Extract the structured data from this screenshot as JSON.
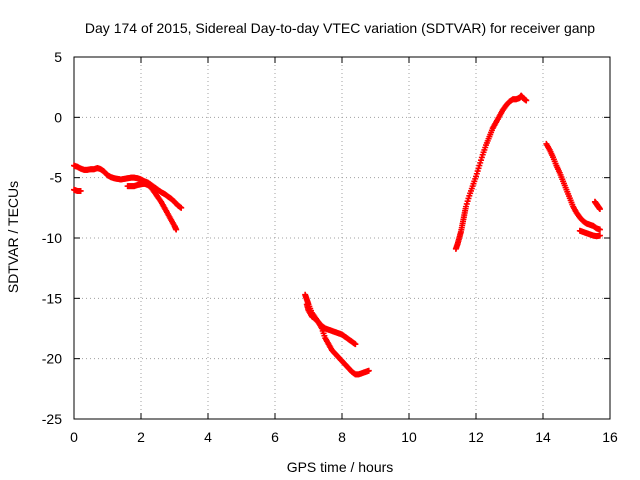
{
  "chart_data": {
    "type": "scatter",
    "title": "Day 174 of 2015, Sidereal Day-to-day VTEC variation (SDTVAR) for receiver ganp",
    "xlabel": "GPS time / hours",
    "ylabel": "SDTVAR / TECUs",
    "xlim": [
      0,
      16
    ],
    "ylim": [
      -25,
      5
    ],
    "xticks": [
      0,
      2,
      4,
      6,
      8,
      10,
      12,
      14,
      16
    ],
    "yticks": [
      -25,
      -20,
      -15,
      -10,
      -5,
      0,
      5
    ],
    "xtick_labels": [
      "0",
      "2",
      "4",
      "6",
      "8",
      "10",
      "12",
      "14",
      "16"
    ],
    "ytick_labels": [
      "-25",
      "-20",
      "-15",
      "-10",
      "-5",
      "0",
      "5"
    ],
    "grid": true,
    "marker": "+",
    "color": "#ff0000",
    "series": [
      {
        "points": [
          [
            0.0,
            -6.0
          ],
          [
            0.1,
            -6.1
          ],
          [
            0.2,
            -6.1
          ]
        ]
      },
      {
        "points": [
          [
            0.0,
            -4.0
          ],
          [
            0.1,
            -4.1
          ],
          [
            0.2,
            -4.25
          ],
          [
            0.3,
            -4.35
          ],
          [
            0.4,
            -4.35
          ],
          [
            0.5,
            -4.3
          ],
          [
            0.6,
            -4.3
          ],
          [
            0.7,
            -4.2
          ],
          [
            0.8,
            -4.3
          ],
          [
            0.9,
            -4.5
          ],
          [
            1.0,
            -4.8
          ],
          [
            1.1,
            -4.95
          ],
          [
            1.2,
            -5.05
          ],
          [
            1.3,
            -5.1
          ],
          [
            1.4,
            -5.15
          ],
          [
            1.5,
            -5.1
          ],
          [
            1.6,
            -5.05
          ],
          [
            1.7,
            -5.0
          ],
          [
            1.8,
            -5.0
          ],
          [
            1.9,
            -5.05
          ],
          [
            2.0,
            -5.15
          ],
          [
            2.1,
            -5.3
          ],
          [
            2.2,
            -5.4
          ],
          [
            2.3,
            -5.6
          ],
          [
            2.4,
            -5.8
          ],
          [
            2.5,
            -6.0
          ],
          [
            2.6,
            -6.2
          ],
          [
            2.7,
            -6.35
          ],
          [
            2.8,
            -6.55
          ],
          [
            2.9,
            -6.75
          ],
          [
            3.0,
            -7.0
          ],
          [
            3.1,
            -7.3
          ],
          [
            3.2,
            -7.5
          ]
        ]
      },
      {
        "points": [
          [
            1.6,
            -5.7
          ],
          [
            1.7,
            -5.7
          ],
          [
            1.8,
            -5.7
          ],
          [
            1.9,
            -5.6
          ],
          [
            2.0,
            -5.55
          ],
          [
            2.1,
            -5.5
          ],
          [
            2.2,
            -5.6
          ],
          [
            2.3,
            -5.8
          ],
          [
            2.4,
            -6.2
          ],
          [
            2.5,
            -6.6
          ],
          [
            2.6,
            -7.0
          ],
          [
            2.7,
            -7.5
          ],
          [
            2.8,
            -8.0
          ],
          [
            2.9,
            -8.5
          ],
          [
            3.0,
            -9.0
          ],
          [
            3.05,
            -9.3
          ]
        ]
      },
      {
        "points": [
          [
            6.9,
            -14.7
          ],
          [
            6.95,
            -15.1
          ],
          [
            7.0,
            -15.5
          ],
          [
            7.1,
            -16.2
          ],
          [
            7.2,
            -16.6
          ],
          [
            7.3,
            -17.0
          ],
          [
            7.4,
            -17.3
          ],
          [
            7.5,
            -17.5
          ],
          [
            7.6,
            -17.6
          ],
          [
            7.7,
            -17.7
          ],
          [
            7.8,
            -17.8
          ],
          [
            7.9,
            -17.9
          ],
          [
            8.0,
            -18.0
          ],
          [
            8.1,
            -18.2
          ],
          [
            8.2,
            -18.4
          ],
          [
            8.3,
            -18.6
          ],
          [
            8.4,
            -18.8
          ]
        ]
      },
      {
        "points": [
          [
            6.95,
            -15.5
          ],
          [
            7.0,
            -16.0
          ],
          [
            7.1,
            -16.5
          ],
          [
            7.2,
            -16.7
          ],
          [
            7.3,
            -17.0
          ],
          [
            7.4,
            -17.5
          ],
          [
            7.5,
            -18.3
          ],
          [
            7.6,
            -18.8
          ],
          [
            7.7,
            -19.3
          ],
          [
            7.8,
            -19.6
          ],
          [
            7.9,
            -19.9
          ],
          [
            8.0,
            -20.2
          ],
          [
            8.1,
            -20.5
          ],
          [
            8.2,
            -20.8
          ],
          [
            8.3,
            -21.1
          ],
          [
            8.4,
            -21.3
          ],
          [
            8.5,
            -21.3
          ],
          [
            8.6,
            -21.2
          ],
          [
            8.7,
            -21.1
          ],
          [
            8.8,
            -21.0
          ]
        ]
      },
      {
        "points": [
          [
            11.4,
            -10.9
          ],
          [
            11.45,
            -10.5
          ],
          [
            11.5,
            -10.0
          ],
          [
            11.55,
            -9.5
          ],
          [
            11.6,
            -8.8
          ],
          [
            11.65,
            -8.1
          ],
          [
            11.7,
            -7.4
          ],
          [
            11.8,
            -6.5
          ],
          [
            11.9,
            -5.7
          ],
          [
            12.0,
            -4.9
          ],
          [
            12.1,
            -4.0
          ],
          [
            12.2,
            -3.1
          ],
          [
            12.3,
            -2.3
          ],
          [
            12.4,
            -1.6
          ],
          [
            12.5,
            -0.9
          ],
          [
            12.6,
            -0.4
          ],
          [
            12.7,
            0.1
          ],
          [
            12.8,
            0.6
          ],
          [
            12.9,
            1.0
          ],
          [
            13.0,
            1.3
          ],
          [
            13.1,
            1.5
          ],
          [
            13.2,
            1.5
          ],
          [
            13.3,
            1.6
          ],
          [
            13.35,
            1.8
          ],
          [
            13.4,
            1.6
          ],
          [
            13.5,
            1.4
          ]
        ]
      },
      {
        "points": [
          [
            14.1,
            -2.2
          ],
          [
            14.2,
            -2.7
          ],
          [
            14.3,
            -3.3
          ],
          [
            14.4,
            -4.0
          ],
          [
            14.5,
            -4.6
          ],
          [
            14.6,
            -5.3
          ],
          [
            14.7,
            -6.0
          ],
          [
            14.8,
            -6.7
          ],
          [
            14.9,
            -7.4
          ],
          [
            15.0,
            -7.9
          ],
          [
            15.1,
            -8.3
          ],
          [
            15.2,
            -8.6
          ],
          [
            15.3,
            -8.8
          ],
          [
            15.4,
            -8.9
          ],
          [
            15.5,
            -9.0
          ],
          [
            15.6,
            -9.2
          ],
          [
            15.7,
            -9.3
          ]
        ]
      },
      {
        "points": [
          [
            15.1,
            -9.4
          ],
          [
            15.2,
            -9.5
          ],
          [
            15.3,
            -9.6
          ],
          [
            15.4,
            -9.7
          ],
          [
            15.5,
            -9.8
          ],
          [
            15.6,
            -9.85
          ],
          [
            15.7,
            -9.8
          ]
        ]
      },
      {
        "points": [
          [
            15.55,
            -7.0
          ],
          [
            15.6,
            -7.2
          ],
          [
            15.65,
            -7.4
          ],
          [
            15.7,
            -7.6
          ]
        ]
      }
    ]
  }
}
